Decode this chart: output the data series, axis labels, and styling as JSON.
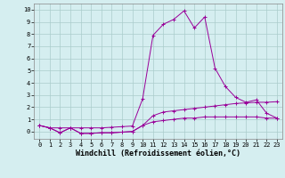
{
  "x": [
    0,
    1,
    2,
    3,
    4,
    5,
    6,
    7,
    8,
    9,
    10,
    11,
    12,
    13,
    14,
    15,
    16,
    17,
    18,
    19,
    20,
    21,
    22,
    23
  ],
  "line1": [
    0.5,
    0.3,
    0.3,
    0.3,
    0.3,
    0.3,
    0.3,
    0.35,
    0.4,
    0.45,
    2.7,
    7.9,
    8.8,
    9.2,
    9.9,
    8.5,
    9.4,
    5.2,
    3.7,
    2.8,
    2.4,
    2.6,
    1.5,
    1.1
  ],
  "line2": [
    0.5,
    0.3,
    -0.1,
    0.3,
    -0.15,
    -0.15,
    -0.1,
    -0.1,
    -0.05,
    0.0,
    0.5,
    1.3,
    1.6,
    1.7,
    1.8,
    1.9,
    2.0,
    2.1,
    2.2,
    2.3,
    2.35,
    2.4,
    2.4,
    2.45
  ],
  "line3": [
    0.5,
    0.3,
    -0.1,
    0.3,
    -0.15,
    -0.15,
    -0.1,
    -0.1,
    -0.05,
    0.0,
    0.5,
    0.8,
    0.9,
    1.0,
    1.1,
    1.1,
    1.2,
    1.2,
    1.2,
    1.2,
    1.2,
    1.2,
    1.1,
    1.1
  ],
  "line_color": "#990099",
  "bg_color": "#d5eef0",
  "grid_color": "#aacccc",
  "xlabel": "Windchill (Refroidissement éolien,°C)",
  "xlim": [
    -0.5,
    23.5
  ],
  "ylim": [
    -0.6,
    10.5
  ],
  "yticks": [
    0,
    1,
    2,
    3,
    4,
    5,
    6,
    7,
    8,
    9,
    10
  ],
  "xticks": [
    0,
    1,
    2,
    3,
    4,
    5,
    6,
    7,
    8,
    9,
    10,
    11,
    12,
    13,
    14,
    15,
    16,
    17,
    18,
    19,
    20,
    21,
    22,
    23
  ],
  "label_fontsize": 6.0,
  "tick_fontsize": 5.0
}
